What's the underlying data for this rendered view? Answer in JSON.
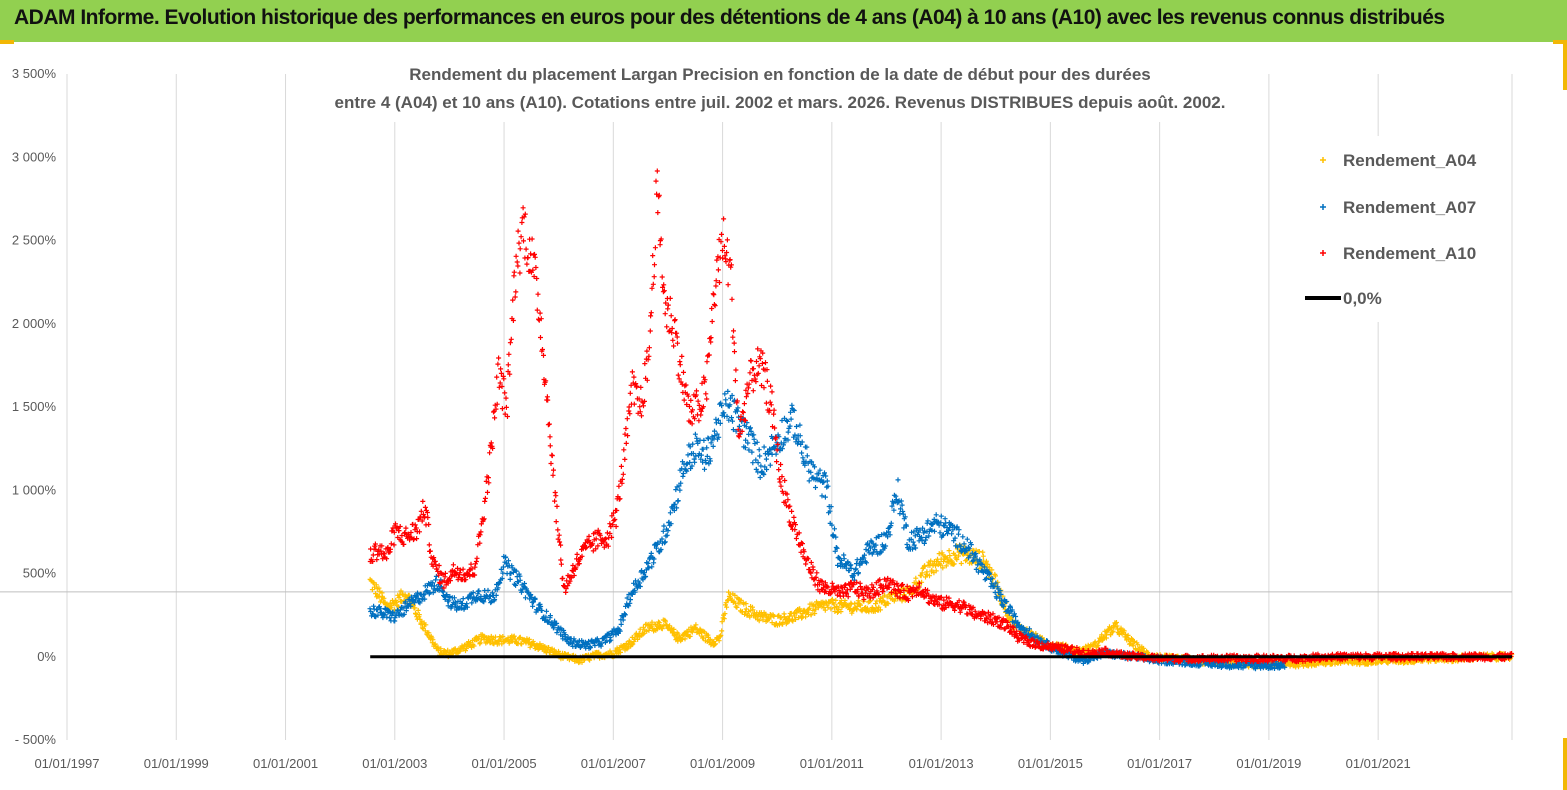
{
  "header": {
    "title": "ADAM Informe. Evolution historique des performances en euros pour des détentions de 4 ans (A04) à 10 ans (A10) avec les revenus connus distribués"
  },
  "colors": {
    "header_bg": "#92d050",
    "a04": "#ffc000",
    "a07": "#0070c0",
    "a10": "#ff0000",
    "zero": "#000000"
  },
  "chart_data": {
    "type": "scatter",
    "title_line1": "Rendement du placement Largan Precision  en fonction de la date de début pour des durées",
    "title_line2": "entre 4 (A04) et 10 ans (A10).  Cotations entre juil. 2002 et mars. 2026. Revenus DISTRIBUES depuis août. 2002.",
    "x_range": [
      1997.0,
      2023.45
    ],
    "y_range": [
      -500,
      3500
    ],
    "y_ticks": [
      {
        "value": 3500,
        "label": "3 500%"
      },
      {
        "value": 3000,
        "label": "3 000%"
      },
      {
        "value": 2500,
        "label": "2 500%"
      },
      {
        "value": 2000,
        "label": "2 000%"
      },
      {
        "value": 1500,
        "label": "1 500%"
      },
      {
        "value": 1000,
        "label": "1 000%"
      },
      {
        "value": 500,
        "label": "500%"
      },
      {
        "value": 0,
        "label": "0%"
      },
      {
        "value": -500,
        "label": "- 500%"
      }
    ],
    "x_ticks": [
      {
        "value": 1997,
        "label": "01/01/1997"
      },
      {
        "value": 1999,
        "label": "01/01/1999"
      },
      {
        "value": 2001,
        "label": "01/01/2001"
      },
      {
        "value": 2003,
        "label": "01/01/2003"
      },
      {
        "value": 2005,
        "label": "01/01/2005"
      },
      {
        "value": 2007,
        "label": "01/01/2007"
      },
      {
        "value": 2009,
        "label": "01/01/2009"
      },
      {
        "value": 2011,
        "label": "01/01/2011"
      },
      {
        "value": 2013,
        "label": "01/01/2013"
      },
      {
        "value": 2015,
        "label": "01/01/2015"
      },
      {
        "value": 2017,
        "label": "01/01/2017"
      },
      {
        "value": 2019,
        "label": "01/01/2019"
      },
      {
        "value": 2021,
        "label": "01/01/2021"
      }
    ],
    "reference_line_value": 390,
    "zero_line": {
      "name": "0,0%",
      "x_start": 2002.55,
      "x_end": 2023.45,
      "y": 0
    },
    "legend_position": "top-right",
    "series": [
      {
        "name": "Rendement_A04",
        "color": "#ffc000",
        "x": [
          2002.55,
          2002.7,
          2002.85,
          2003.0,
          2003.2,
          2003.4,
          2003.6,
          2003.8,
          2004.0,
          2004.3,
          2004.6,
          2004.9,
          2005.2,
          2005.5,
          2005.8,
          2006.1,
          2006.4,
          2006.7,
          2007.0,
          2007.3,
          2007.6,
          2007.9,
          2008.2,
          2008.5,
          2008.8,
          2008.95,
          2009.1,
          2009.4,
          2009.7,
          2010.0,
          2010.3,
          2010.6,
          2010.9,
          2011.2,
          2011.5,
          2011.8,
          2012.1,
          2012.4,
          2012.7,
          2013.0,
          2013.3,
          2013.6,
          2013.8,
          2014.0,
          2014.3,
          2014.6,
          2014.9,
          2015.2,
          2015.5,
          2015.8,
          2016.0,
          2016.2,
          2016.5,
          2016.8,
          2017.1,
          2017.5,
          2018.0,
          2018.5,
          2019.0,
          2019.5,
          2020.0,
          2020.5,
          2021.0,
          2021.5,
          2022.0,
          2022.5,
          2022.9,
          2023.2,
          2023.45
        ],
        "values": [
          450,
          380,
          300,
          320,
          380,
          260,
          150,
          30,
          20,
          60,
          110,
          100,
          100,
          80,
          40,
          0,
          -20,
          10,
          20,
          80,
          170,
          200,
          110,
          170,
          90,
          110,
          360,
          290,
          240,
          220,
          240,
          280,
          310,
          300,
          300,
          300,
          360,
          380,
          500,
          580,
          620,
          600,
          570,
          440,
          200,
          140,
          80,
          60,
          30,
          60,
          130,
          180,
          80,
          10,
          -10,
          -20,
          -30,
          -40,
          -40,
          -40,
          -30,
          -30,
          -20,
          -20,
          -10,
          -10,
          0,
          0,
          0
        ]
      },
      {
        "name": "Rendement_A07",
        "color": "#0070c0",
        "x": [
          2002.55,
          2002.8,
          2003.0,
          2003.3,
          2003.6,
          2003.8,
          2004.0,
          2004.2,
          2004.5,
          2004.8,
          2005.0,
          2005.3,
          2005.6,
          2005.9,
          2006.2,
          2006.5,
          2006.8,
          2007.1,
          2007.3,
          2007.6,
          2007.9,
          2008.1,
          2008.3,
          2008.5,
          2008.7,
          2008.9,
          2009.1,
          2009.3,
          2009.5,
          2009.7,
          2009.9,
          2010.1,
          2010.3,
          2010.5,
          2010.7,
          2010.9,
          2011.1,
          2011.4,
          2011.7,
          2012.0,
          2012.2,
          2012.4,
          2012.6,
          2012.9,
          2013.2,
          2013.5,
          2013.8,
          2014.1,
          2014.4,
          2014.7,
          2015.0,
          2015.3,
          2015.6,
          2016.0,
          2016.5,
          2017.0,
          2017.5,
          2018.0,
          2018.5,
          2019.0,
          2019.3
        ],
        "values": [
          280,
          260,
          240,
          320,
          400,
          450,
          330,
          300,
          380,
          350,
          560,
          440,
          300,
          200,
          90,
          70,
          90,
          160,
          360,
          530,
          700,
          900,
          1150,
          1250,
          1200,
          1380,
          1520,
          1400,
          1300,
          1150,
          1250,
          1350,
          1420,
          1200,
          1070,
          1020,
          600,
          500,
          650,
          700,
          1000,
          700,
          720,
          800,
          750,
          650,
          500,
          350,
          200,
          120,
          60,
          10,
          -20,
          20,
          0,
          -20,
          -30,
          -40,
          -50,
          -50,
          -50
        ]
      },
      {
        "name": "Rendement_A10",
        "color": "#ff0000",
        "x": [
          2002.55,
          2002.7,
          2002.85,
          2003.0,
          2003.2,
          2003.4,
          2003.55,
          2003.7,
          2003.9,
          2004.1,
          2004.3,
          2004.45,
          2004.6,
          2004.75,
          2004.9,
          2005.05,
          2005.2,
          2005.35,
          2005.5,
          2005.65,
          2005.8,
          2005.95,
          2006.1,
          2006.3,
          2006.5,
          2006.7,
          2006.9,
          2007.05,
          2007.2,
          2007.35,
          2007.5,
          2007.65,
          2007.8,
          2007.95,
          2008.1,
          2008.25,
          2008.4,
          2008.55,
          2008.7,
          2008.85,
          2009.0,
          2009.15,
          2009.3,
          2009.45,
          2009.6,
          2009.75,
          2009.9,
          2010.05,
          2010.2,
          2010.35,
          2010.5,
          2010.65,
          2010.8,
          2011.0,
          2011.2,
          2011.4,
          2011.6,
          2011.8,
          2012.0,
          2012.2,
          2012.4,
          2012.6,
          2012.8,
          2013.0,
          2013.2,
          2013.4,
          2013.6,
          2013.8,
          2014.0,
          2014.2,
          2014.4,
          2014.6,
          2014.8,
          2015.0,
          2015.2,
          2015.4,
          2015.7,
          2016.0,
          2016.3,
          2016.6,
          2017.0,
          2017.5,
          2018.0,
          2018.5,
          2019.0,
          2019.5,
          2020.0,
          2020.5,
          2021.0,
          2021.5,
          2022.0,
          2022.5,
          2022.9,
          2023.2,
          2023.45
        ],
        "values": [
          600,
          650,
          600,
          750,
          720,
          760,
          900,
          560,
          450,
          520,
          500,
          520,
          800,
          1200,
          1700,
          1500,
          2300,
          2600,
          2400,
          2100,
          1500,
          900,
          400,
          550,
          650,
          700,
          720,
          850,
          1200,
          1600,
          1500,
          1800,
          2800,
          2100,
          2000,
          1700,
          1450,
          1500,
          1600,
          2200,
          2500,
          2300,
          1300,
          1600,
          1750,
          1700,
          1500,
          1100,
          900,
          750,
          600,
          500,
          420,
          400,
          380,
          420,
          380,
          400,
          450,
          400,
          380,
          420,
          350,
          320,
          320,
          300,
          260,
          240,
          220,
          190,
          120,
          90,
          70,
          60,
          50,
          40,
          20,
          30,
          10,
          0,
          -10,
          -10,
          -10,
          -10,
          -10,
          -10,
          0,
          0,
          0,
          0,
          0,
          0,
          0,
          0,
          0
        ]
      }
    ]
  }
}
